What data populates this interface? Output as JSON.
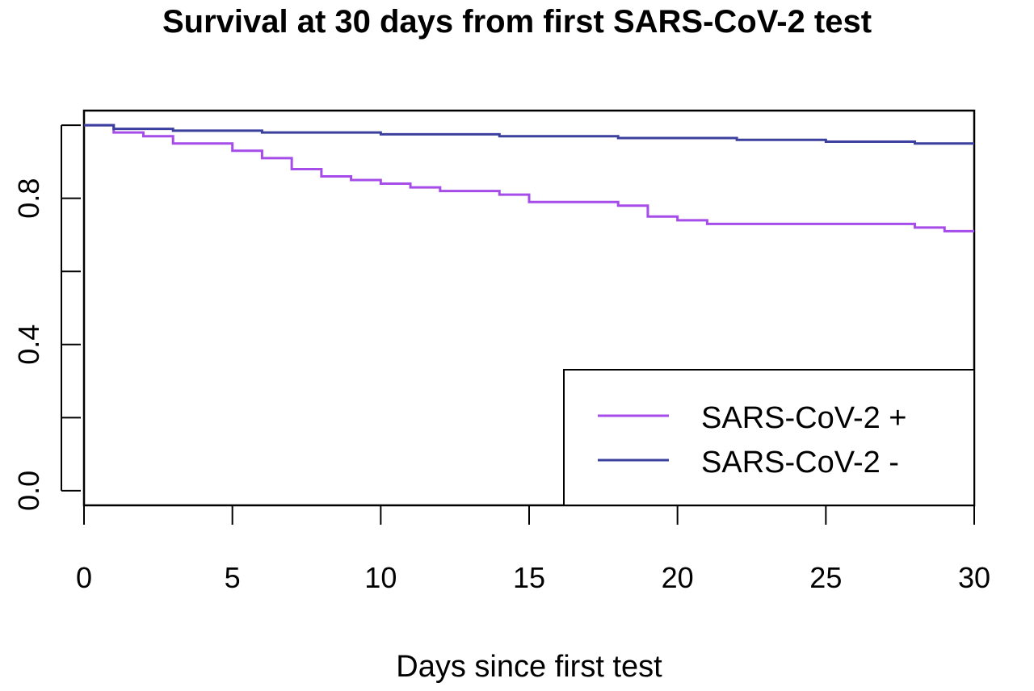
{
  "chart_data": {
    "type": "line",
    "title": "Survival at 30 days from first SARS-CoV-2 test",
    "xlabel": "Days since first test",
    "ylabel": "",
    "xlim": [
      0,
      30
    ],
    "ylim": [
      -0.04,
      1.04
    ],
    "x_ticks": [
      0,
      5,
      10,
      15,
      20,
      25,
      30
    ],
    "x_tick_labels": [
      "0",
      "5",
      "10",
      "15",
      "20",
      "25",
      "30"
    ],
    "y_ticks": [
      0.0,
      0.2,
      0.4,
      0.6,
      0.8,
      1.0
    ],
    "y_tick_labels": [
      "0.0",
      "",
      "0.4",
      "",
      "0.8",
      ""
    ],
    "grid": false,
    "legend_position": "bottom-right",
    "series": [
      {
        "name": "SARS-CoV-2 +",
        "color": "#a64ce8",
        "step": true,
        "x": [
          0,
          1,
          2,
          3,
          5,
          6,
          7,
          8,
          9,
          10,
          11,
          12,
          14,
          15,
          18,
          19,
          20,
          21,
          28,
          29,
          30
        ],
        "y": [
          1.0,
          0.98,
          0.97,
          0.95,
          0.93,
          0.91,
          0.88,
          0.86,
          0.85,
          0.84,
          0.83,
          0.82,
          0.81,
          0.79,
          0.78,
          0.75,
          0.74,
          0.73,
          0.72,
          0.71,
          0.71
        ]
      },
      {
        "name": "SARS-CoV-2 -",
        "color": "#3b3f9e",
        "step": true,
        "x": [
          0,
          1,
          3,
          6,
          10,
          14,
          18,
          22,
          25,
          28,
          30
        ],
        "y": [
          1.0,
          0.99,
          0.985,
          0.98,
          0.975,
          0.97,
          0.965,
          0.96,
          0.955,
          0.95,
          0.95
        ]
      }
    ]
  }
}
